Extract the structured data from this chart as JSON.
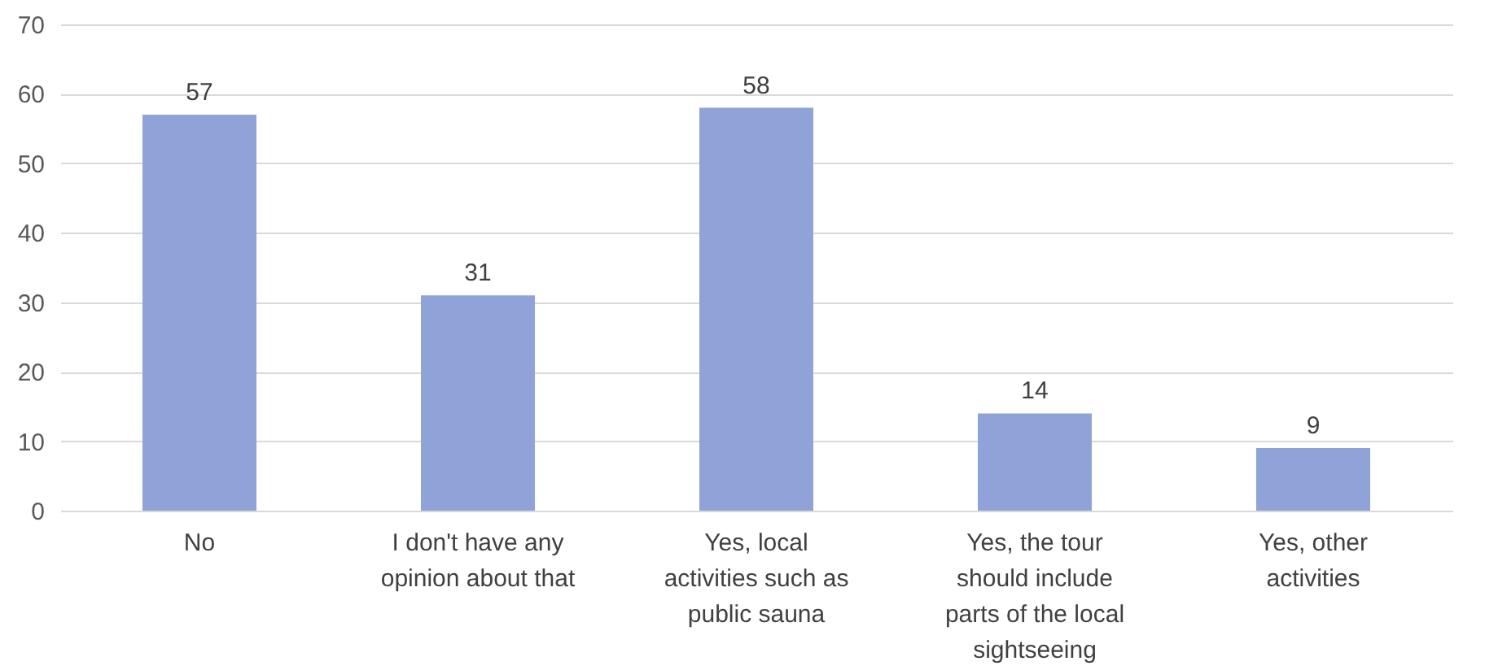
{
  "chart_data": {
    "type": "bar",
    "categories": [
      "No",
      "I don't have any opinion about that",
      "Yes, local activities such as public sauna",
      "Yes, the tour should include parts of the local sightseeing",
      "Yes, other activities"
    ],
    "values": [
      57,
      31,
      58,
      14,
      9
    ],
    "color": "#8fa3d8",
    "ylim": [
      0,
      70
    ],
    "yticks": [
      0,
      10,
      20,
      30,
      40,
      50,
      60,
      70
    ],
    "grid": "y",
    "data_labels": true
  }
}
